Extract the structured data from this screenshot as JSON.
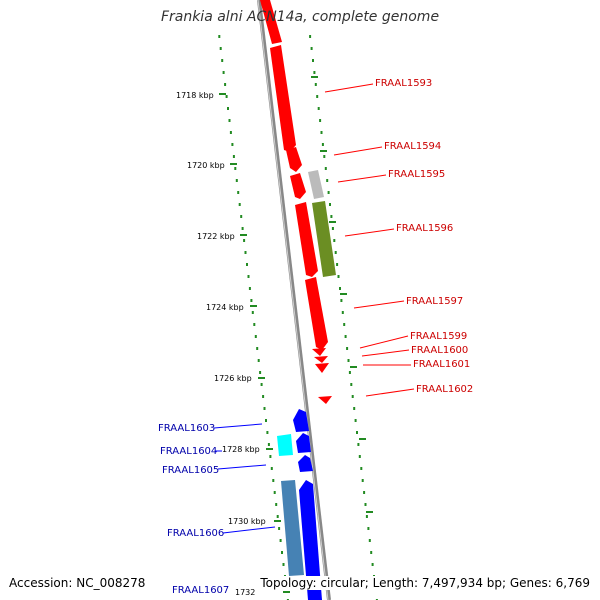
{
  "title": "Frankia alni ACN14a, complete genome",
  "accession": "Accession: NC_008278",
  "summary": "Topology: circular; Length: 7,497,934 bp; Genes: 6,769",
  "colors": {
    "forward_strand": "#ff0000",
    "reverse_strand": "#0000ff",
    "backbone": "#888888",
    "tick": "#228b22",
    "other_gray": "#bbbbbb",
    "other_olive": "#6b8e23",
    "other_cyan": "#00ffff",
    "other_steel": "#4682b4"
  },
  "scale_labels": [
    "1718 kbp",
    "1720 kbp",
    "1722 kbp",
    "1724 kbp",
    "1726 kbp",
    "1728 kbp",
    "1730 kbp",
    "1732"
  ],
  "genes_right": [
    "FRAAL1593",
    "FRAAL1594",
    "FRAAL1595",
    "FRAAL1596",
    "FRAAL1597",
    "FRAAL1599",
    "FRAAL1600",
    "FRAAL1601",
    "FRAAL1602"
  ],
  "genes_left": [
    "FRAAL1603",
    "FRAAL1604",
    "FRAAL1605",
    "FRAAL1606",
    "FRAAL1607"
  ]
}
